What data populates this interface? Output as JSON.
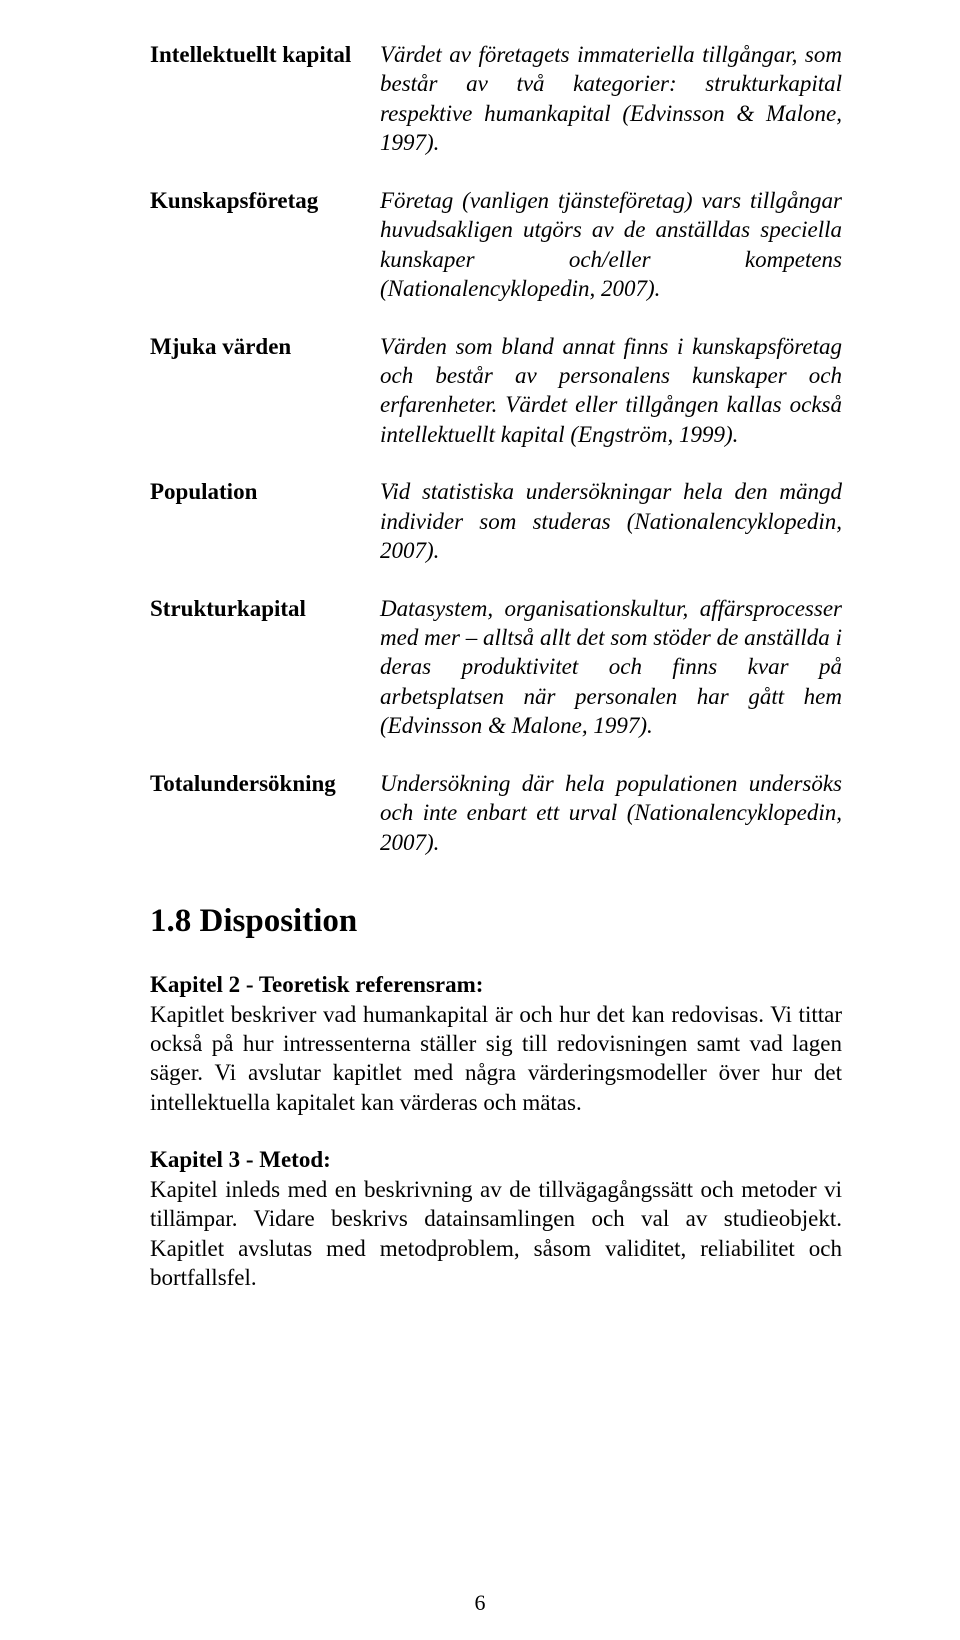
{
  "definitions": [
    {
      "term": "Intellektuellt kapital",
      "desc": "Värdet av företagets immateriella tillgångar, som består av två kategorier: strukturkapital respektive humankapital (Edvinsson & Malone, 1997)."
    },
    {
      "term": "Kunskapsföretag",
      "desc": "Företag (vanligen tjänsteföretag) vars tillgångar huvudsakligen utgörs av de anställdas speciella kunskaper och/eller kompetens (Nationalencyklopedin, 2007)."
    },
    {
      "term": "Mjuka värden",
      "desc": "Värden som bland annat finns i kunskapsföretag och består av personalens kunskaper och erfarenheter. Värdet eller tillgången kallas också intellektuellt kapital (Engström, 1999)."
    },
    {
      "term": "Population",
      "desc": "Vid statistiska undersökningar hela den mängd individer som studeras (Nationalencyklopedin, 2007)."
    },
    {
      "term": "Strukturkapital",
      "desc": "Datasystem, organisationskultur, affärsprocesser med mer – alltså allt det som stöder de anställda i deras produktivitet och finns kvar på arbetsplatsen när personalen har gått hem (Edvinsson & Malone, 1997)."
    },
    {
      "term": "Totalundersökning",
      "desc": "Undersökning där hela populationen undersöks och inte enbart ett urval (Nationalencyklopedin, 2007)."
    }
  ],
  "disposition_heading": "1.8 Disposition",
  "kap2_head": "Kapitel 2 - Teoretisk referensram:",
  "kap2_body": "Kapitlet beskriver vad humankapital är och hur det kan redovisas. Vi tittar också på hur intressenterna ställer sig till redovisningen samt vad lagen säger. Vi avslutar kapitlet med några värderingsmodeller över hur det intellektuella kapitalet kan värderas och mätas.",
  "kap3_head": "Kapitel 3 - Metod:",
  "kap3_body": "Kapitel inleds med en beskrivning av de tillvägagångssätt och metoder vi tillämpar. Vidare beskrivs datainsamlingen och val av studieobjekt. Kapitlet avslutas med metodproblem, såsom validitet, reliabilitet och bortfallsfel.",
  "page_number": "6"
}
